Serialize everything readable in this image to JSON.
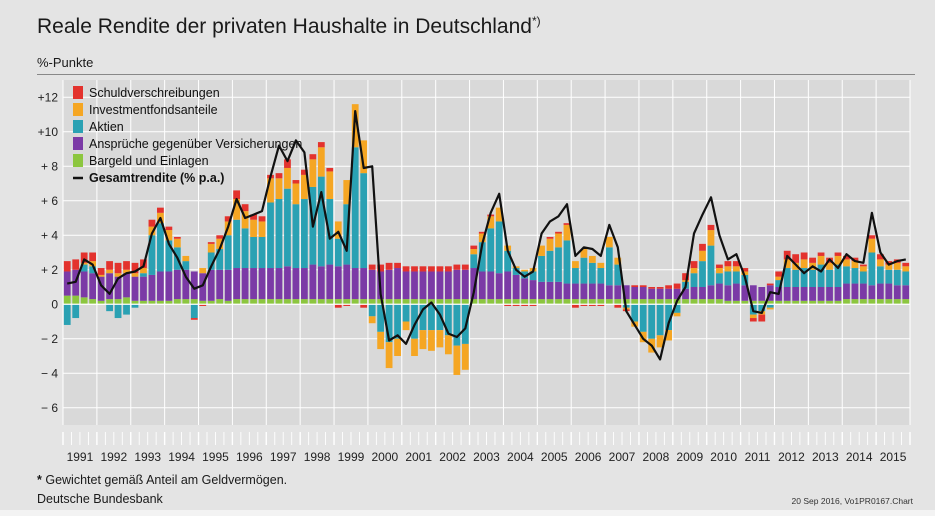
{
  "title": "Reale Rendite der privaten Haushalte in Deutschland",
  "title_footnote_mark": "*)",
  "unit_label": "%-Punkte",
  "footnote_mark": "*",
  "footnote_text": " Gewichtet gemäß Anteil am Geldvermögen.",
  "source": "Deutsche Bundesbank",
  "stamp": "20 Sep 2016, Vo1PR0167.Chart",
  "colors": {
    "schuld": "#e3322d",
    "fonds": "#f5a623",
    "aktien": "#2aa1b3",
    "versich": "#7b3aa6",
    "bargeld": "#8cc63f",
    "total": "#111111"
  },
  "chart_data": {
    "type": "bar",
    "stacked": true,
    "ylim": [
      -7,
      13
    ],
    "yticks": [
      -6,
      -4,
      -2,
      0,
      2,
      4,
      6,
      8,
      10,
      12
    ],
    "ytick_labels": [
      "− 6",
      "− 4",
      "− 2",
      "0",
      "+ 2",
      "+ 4",
      "+ 6",
      "+ 8",
      "+10",
      "+12"
    ],
    "years": [
      "1991",
      "1992",
      "1993",
      "1994",
      "1995",
      "1996",
      "1997",
      "1998",
      "1999",
      "2000",
      "2001",
      "2002",
      "2003",
      "2004",
      "2005",
      "2006",
      "2007",
      "2008",
      "2009",
      "2010",
      "2011",
      "2012",
      "2013",
      "2014",
      "2015"
    ],
    "first_year": 1991,
    "quarters_first_year": [
      1,
      2,
      3,
      4
    ],
    "legend": [
      {
        "key": "schuld",
        "label": "Schuldverschreibungen"
      },
      {
        "key": "fonds",
        "label": "Investmentfondsanteile"
      },
      {
        "key": "aktien",
        "label": "Aktien"
      },
      {
        "key": "versich",
        "label": "Ansprüche gegenüber Versicherungen"
      },
      {
        "key": "bargeld",
        "label": "Bargeld und Einlagen"
      },
      {
        "key": "total",
        "label": "Gesamtrendite (% p.a.)"
      }
    ],
    "legend_position": "top-left",
    "grid": true,
    "series": {
      "bargeld": [
        0.5,
        0.5,
        0.4,
        0.3,
        0.2,
        0.3,
        0.3,
        0.4,
        0.2,
        0.2,
        0.2,
        0.2,
        0.2,
        0.3,
        0.3,
        0.3,
        0.2,
        0.2,
        0.3,
        0.2,
        0.3,
        0.3,
        0.3,
        0.3,
        0.3,
        0.3,
        0.3,
        0.3,
        0.3,
        0.3,
        0.3,
        0.3,
        0.3,
        0.3,
        0.3,
        0.3,
        0.3,
        0.3,
        0.3,
        0.3,
        0.3,
        0.3,
        0.3,
        0.3,
        0.3,
        0.3,
        0.3,
        0.3,
        0.3,
        0.3,
        0.3,
        0.3,
        0.3,
        0.3,
        0.3,
        0.3,
        0.3,
        0.3,
        0.3,
        0.3,
        0.3,
        0.3,
        0.3,
        0.3,
        0.3,
        0.3,
        0.3,
        0.3,
        0.3,
        0.3,
        0.3,
        0.3,
        0.3,
        0.3,
        0.3,
        0.3,
        0.3,
        0.3,
        0.2,
        0.2,
        0.2,
        0.2,
        0.2,
        0.2,
        0.2,
        0.2,
        0.2,
        0.2,
        0.2,
        0.2,
        0.2,
        0.2,
        0.3,
        0.3,
        0.3,
        0.3,
        0.3,
        0.3,
        0.3,
        0.3
      ],
      "versich": [
        1.4,
        1.5,
        1.5,
        1.5,
        1.4,
        1.5,
        1.3,
        1.4,
        1.4,
        1.4,
        1.5,
        1.7,
        1.7,
        1.7,
        1.7,
        1.6,
        1.6,
        1.8,
        1.7,
        1.8,
        1.8,
        1.8,
        1.8,
        1.8,
        1.8,
        1.8,
        1.9,
        1.8,
        1.8,
        2.0,
        1.9,
        2.0,
        1.9,
        2.0,
        1.8,
        1.8,
        1.7,
        1.6,
        1.7,
        1.8,
        1.6,
        1.6,
        1.6,
        1.6,
        1.6,
        1.6,
        1.7,
        1.7,
        1.8,
        1.6,
        1.6,
        1.5,
        1.6,
        1.4,
        1.2,
        1.1,
        1.0,
        1.0,
        1.0,
        0.9,
        0.9,
        0.9,
        0.9,
        0.9,
        0.8,
        0.8,
        0.8,
        0.7,
        0.7,
        0.6,
        0.6,
        0.6,
        0.6,
        0.6,
        0.7,
        0.7,
        0.8,
        0.9,
        0.9,
        1.0,
        0.9,
        0.9,
        0.8,
        0.9,
        0.8,
        0.8,
        0.8,
        0.8,
        0.8,
        0.8,
        0.8,
        0.8,
        0.9,
        0.9,
        0.9,
        0.8,
        0.9,
        0.9,
        0.8,
        0.8
      ],
      "aktien": [
        -1.2,
        -0.8,
        0.4,
        0.4,
        0.0,
        -0.4,
        -0.8,
        -0.6,
        -0.2,
        0.2,
        2.3,
        2.8,
        1.8,
        1.3,
        0.5,
        -0.8,
        0.0,
        1.0,
        1.2,
        2.0,
        2.8,
        2.3,
        1.8,
        1.8,
        3.8,
        4.0,
        4.5,
        3.7,
        4.0,
        4.5,
        5.2,
        3.8,
        1.6,
        3.5,
        7.0,
        5.5,
        -0.7,
        -1.6,
        -2.2,
        -2.0,
        -1.0,
        -2.0,
        -1.5,
        -1.5,
        -1.5,
        -1.8,
        -2.4,
        -2.3,
        0.8,
        1.7,
        2.5,
        3.0,
        1.2,
        0.4,
        0.4,
        0.5,
        1.5,
        1.8,
        2.0,
        2.5,
        0.9,
        1.5,
        1.2,
        0.9,
        2.2,
        1.2,
        -0.2,
        -1.0,
        -1.6,
        -2.0,
        -1.8,
        -1.5,
        -0.5,
        0.4,
        0.8,
        1.5,
        2.3,
        0.6,
        0.8,
        0.7,
        0.6,
        -0.6,
        -0.4,
        -0.2,
        0.4,
        1.1,
        1.0,
        1.1,
        1.0,
        1.3,
        1.0,
        1.3,
        1.0,
        0.9,
        0.7,
        1.9,
        1.0,
        0.8,
        0.9,
        0.8
      ],
      "fonds": [
        0.0,
        0.0,
        0.1,
        0.3,
        0.1,
        0.2,
        0.2,
        0.2,
        0.2,
        0.3,
        0.5,
        0.6,
        0.6,
        0.5,
        0.3,
        0.0,
        0.3,
        0.5,
        0.6,
        0.8,
        1.2,
        1.0,
        1.0,
        0.9,
        1.4,
        1.2,
        1.2,
        1.2,
        1.4,
        1.6,
        1.7,
        1.6,
        1.0,
        1.4,
        2.5,
        1.9,
        -0.4,
        -1.0,
        -1.5,
        -1.0,
        -0.5,
        -1.0,
        -1.1,
        -1.2,
        -1.0,
        -1.1,
        -1.7,
        -1.5,
        0.3,
        0.5,
        0.7,
        0.8,
        0.3,
        0.1,
        0.1,
        0.2,
        0.6,
        0.7,
        0.8,
        0.9,
        0.4,
        0.5,
        0.4,
        0.3,
        0.6,
        0.4,
        -0.1,
        -0.3,
        -0.6,
        -0.8,
        -0.7,
        -0.6,
        -0.2,
        0.1,
        0.3,
        0.6,
        0.9,
        0.3,
        0.3,
        0.3,
        0.2,
        -0.2,
        -0.2,
        -0.1,
        0.2,
        0.5,
        0.4,
        0.5,
        0.4,
        0.5,
        0.4,
        0.5,
        0.4,
        0.4,
        0.3,
        0.8,
        0.4,
        0.3,
        0.4,
        0.3
      ],
      "schuld": [
        0.6,
        0.6,
        0.6,
        0.5,
        0.4,
        0.5,
        0.6,
        0.5,
        0.6,
        0.5,
        0.4,
        0.3,
        0.2,
        0.1,
        0.0,
        -0.1,
        -0.1,
        0.1,
        0.2,
        0.3,
        0.5,
        0.4,
        0.3,
        0.3,
        0.2,
        0.3,
        0.5,
        0.2,
        0.3,
        0.3,
        0.3,
        0.2,
        -0.2,
        -0.1,
        0.0,
        -0.2,
        0.3,
        0.4,
        0.4,
        0.3,
        0.3,
        0.3,
        0.3,
        0.3,
        0.3,
        0.3,
        0.3,
        0.3,
        0.2,
        0.1,
        0.1,
        0.0,
        -0.1,
        -0.1,
        -0.1,
        -0.1,
        0.0,
        0.1,
        0.1,
        0.1,
        -0.2,
        -0.1,
        -0.1,
        -0.1,
        0.0,
        -0.2,
        -0.1,
        0.1,
        0.1,
        0.1,
        0.1,
        0.2,
        0.3,
        0.4,
        0.4,
        0.4,
        0.3,
        0.2,
        0.3,
        0.3,
        0.2,
        -0.2,
        -0.4,
        0.1,
        0.3,
        0.5,
        0.5,
        0.4,
        0.3,
        0.2,
        0.3,
        0.2,
        0.2,
        0.2,
        0.1,
        0.2,
        0.3,
        0.2,
        0.2,
        0.2
      ],
      "total": [
        1.2,
        1.3,
        2.6,
        2.3,
        1.1,
        0.6,
        1.5,
        1.8,
        1.9,
        2.2,
        4.1,
        5.0,
        3.5,
        2.7,
        1.6,
        0.9,
        1.1,
        2.2,
        3.2,
        4.5,
        6.1,
        5.0,
        5.2,
        5.4,
        7.4,
        9.2,
        8.3,
        9.5,
        8.8,
        4.5,
        6.5,
        3.8,
        4.2,
        3.1,
        11.2,
        7.9,
        8.0,
        0.6,
        -2.1,
        -1.8,
        -2.3,
        -1.2,
        -0.3,
        0.1,
        -0.6,
        -1.7,
        -1.9,
        -1.4,
        0.7,
        3.5,
        5.3,
        6.4,
        3.1,
        2.0,
        1.6,
        1.9,
        4.1,
        4.8,
        5.1,
        5.8,
        2.8,
        3.3,
        3.2,
        2.8,
        4.6,
        3.3,
        -0.4,
        -1.2,
        -2.0,
        -2.4,
        -3.2,
        -1.1,
        0.2,
        1.0,
        4.1,
        5.2,
        6.2,
        4.0,
        2.6,
        2.9,
        1.6,
        -0.4,
        -0.5,
        0.7,
        0.6,
        2.8,
        2.3,
        1.8,
        2.2,
        1.9,
        2.6,
        2.1,
        2.9,
        2.5,
        2.4,
        5.3,
        3.0,
        2.3,
        2.5,
        2.6
      ]
    }
  }
}
